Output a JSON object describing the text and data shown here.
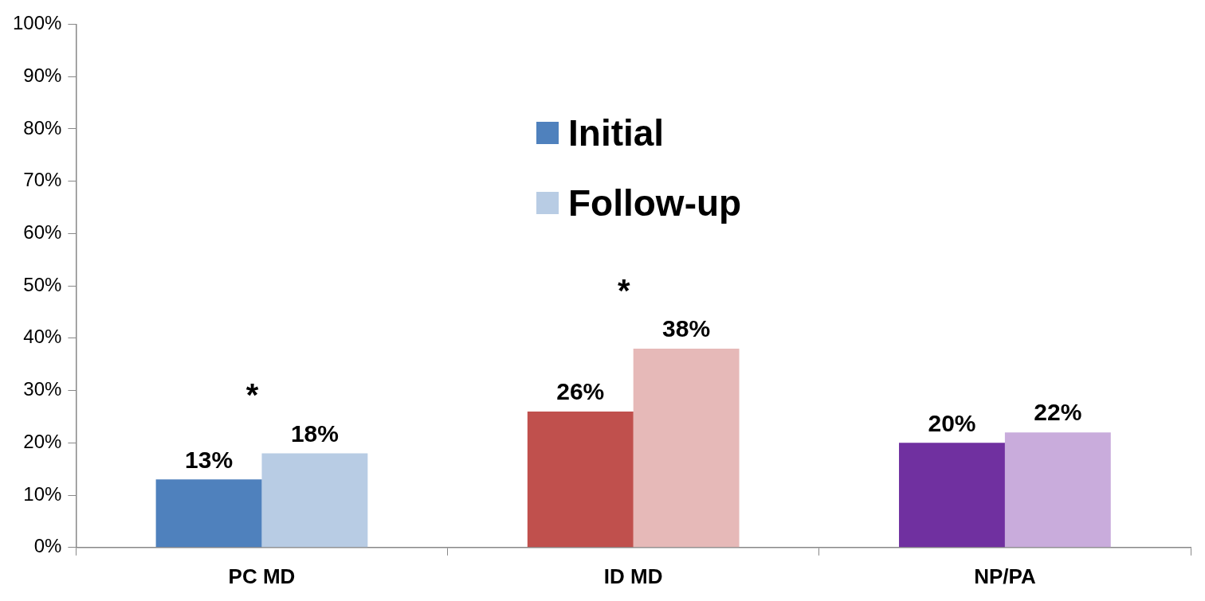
{
  "chart_data": {
    "type": "bar",
    "categories": [
      "PC MD",
      "ID MD",
      "NP/PA"
    ],
    "series": [
      {
        "name": "Initial",
        "color": "#4f81bd",
        "colors": [
          "#4f81bd",
          "#c0504d",
          "#7030a0"
        ],
        "values": [
          13,
          26,
          20
        ],
        "value_labels": [
          "13%",
          "26%",
          "20%"
        ]
      },
      {
        "name": "Follow-up",
        "color": "#b8cce4",
        "colors": [
          "#b8cce4",
          "#e6b9b8",
          "#c9acdc"
        ],
        "values": [
          18,
          38,
          22
        ],
        "value_labels": [
          "18%",
          "38%",
          "22%"
        ]
      }
    ],
    "ylim": [
      0,
      100
    ],
    "yticks": [
      {
        "value": 0,
        "label": "0%"
      },
      {
        "value": 10,
        "label": "10%"
      },
      {
        "value": 20,
        "label": "20%"
      },
      {
        "value": 30,
        "label": "30%"
      },
      {
        "value": 40,
        "label": "40%"
      },
      {
        "value": 50,
        "label": "50%"
      },
      {
        "value": 60,
        "label": "60%"
      },
      {
        "value": 70,
        "label": "70%"
      },
      {
        "value": 80,
        "label": "80%"
      },
      {
        "value": 90,
        "label": "90%"
      },
      {
        "value": 100,
        "label": "100%"
      }
    ],
    "annotations": [
      "*",
      "*"
    ],
    "legend": "top",
    "grid": false
  }
}
